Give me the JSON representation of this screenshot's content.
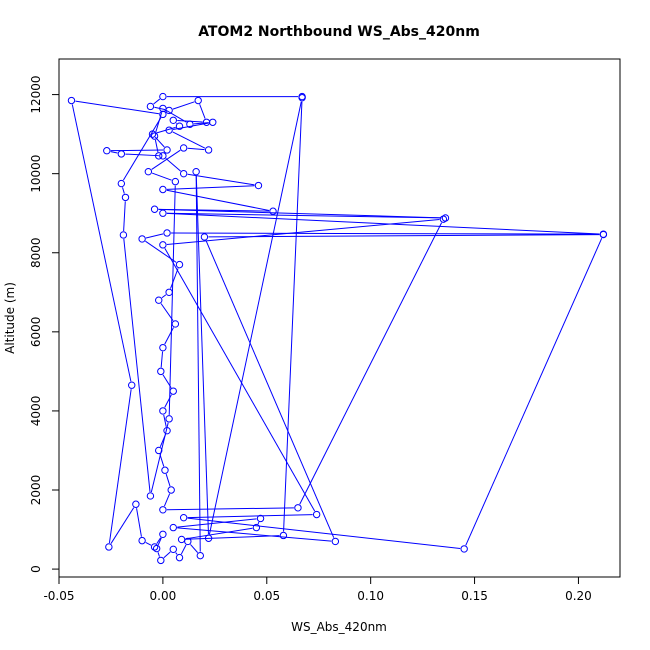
{
  "chart_data": {
    "type": "scatter",
    "title": "ATOM2 Northbound WS_Abs_420nm",
    "xlabel": "WS_Abs_420nm",
    "ylabel": "Altitude (m)",
    "xlim": [
      -0.05,
      0.22
    ],
    "ylim": [
      -200,
      12900
    ],
    "xticks": [
      -0.05,
      0.0,
      0.05,
      0.1,
      0.15,
      0.2
    ],
    "xtick_labels": [
      "-0.05",
      "0.00",
      "0.05",
      "0.10",
      "0.15",
      "0.20"
    ],
    "yticks": [
      0,
      2000,
      4000,
      6000,
      8000,
      10000,
      12000
    ],
    "ytick_labels": [
      "0",
      "2000",
      "4000",
      "6000",
      "8000",
      "10000",
      "12000"
    ],
    "grid": false,
    "legend": "none",
    "color": "#0000ff",
    "marker": "open-circle",
    "connected": true,
    "series": [
      {
        "values": [
          [
            0.067,
            11950
          ],
          [
            0.0,
            11950
          ],
          [
            -0.006,
            11700
          ],
          [
            0.003,
            11600
          ],
          [
            0.017,
            11850
          ],
          [
            0.021,
            11300
          ],
          [
            0.005,
            11350
          ],
          [
            0.008,
            11200
          ],
          [
            -0.005,
            11000
          ],
          [
            0.002,
            10600
          ],
          [
            -0.027,
            10580
          ],
          [
            -0.02,
            10500
          ],
          [
            0.0,
            10450
          ],
          [
            0.01,
            10000
          ],
          [
            0.046,
            9700
          ],
          [
            0.0,
            9600
          ],
          [
            0.053,
            9050
          ],
          [
            -0.004,
            9100
          ],
          [
            0.136,
            8880
          ],
          [
            0.0,
            9000
          ],
          [
            0.212,
            8470
          ],
          [
            0.002,
            8500
          ],
          [
            -0.01,
            8350
          ],
          [
            0.008,
            7700
          ],
          [
            0.003,
            7000
          ],
          [
            -0.002,
            6800
          ],
          [
            0.006,
            6200
          ],
          [
            0.0,
            5600
          ],
          [
            -0.001,
            5000
          ],
          [
            0.005,
            4500
          ],
          [
            0.0,
            4000
          ],
          [
            0.002,
            3500
          ],
          [
            -0.002,
            3000
          ],
          [
            0.001,
            2500
          ],
          [
            0.004,
            2000
          ],
          [
            0.0,
            1500
          ],
          [
            0.065,
            1550
          ],
          [
            0.135,
            8850
          ],
          [
            0.0,
            8200
          ],
          [
            0.074,
            1380
          ],
          [
            0.01,
            1300
          ],
          [
            0.145,
            510
          ],
          [
            0.212,
            8460
          ],
          [
            0.02,
            8400
          ],
          [
            0.083,
            700
          ],
          [
            0.005,
            1050
          ],
          [
            0.047,
            1280
          ],
          [
            0.045,
            1050
          ],
          [
            0.009,
            750
          ],
          [
            0.058,
            850
          ],
          [
            0.067,
            11920
          ],
          [
            0.022,
            780
          ],
          [
            0.016,
            10050
          ],
          [
            0.018,
            340
          ],
          [
            0.012,
            700
          ],
          [
            0.008,
            290
          ],
          [
            0.005,
            500
          ],
          [
            -0.001,
            220
          ],
          [
            -0.003,
            520
          ],
          [
            0.0,
            880
          ],
          [
            -0.004,
            560
          ],
          [
            -0.01,
            720
          ],
          [
            -0.013,
            1640
          ],
          [
            -0.026,
            560
          ],
          [
            -0.015,
            4650
          ],
          [
            -0.044,
            11850
          ],
          [
            0.0,
            11500
          ],
          [
            -0.02,
            9750
          ],
          [
            -0.018,
            9400
          ],
          [
            -0.019,
            8450
          ],
          [
            -0.006,
            1850
          ],
          [
            0.003,
            3800
          ],
          [
            0.006,
            9800
          ],
          [
            -0.007,
            10050
          ],
          [
            0.01,
            10650
          ],
          [
            0.022,
            10600
          ],
          [
            0.003,
            11100
          ],
          [
            0.024,
            11300
          ],
          [
            0.013,
            11250
          ],
          [
            0.0,
            11650
          ],
          [
            -0.004,
            10950
          ],
          [
            -0.002,
            10450
          ]
        ]
      }
    ]
  }
}
